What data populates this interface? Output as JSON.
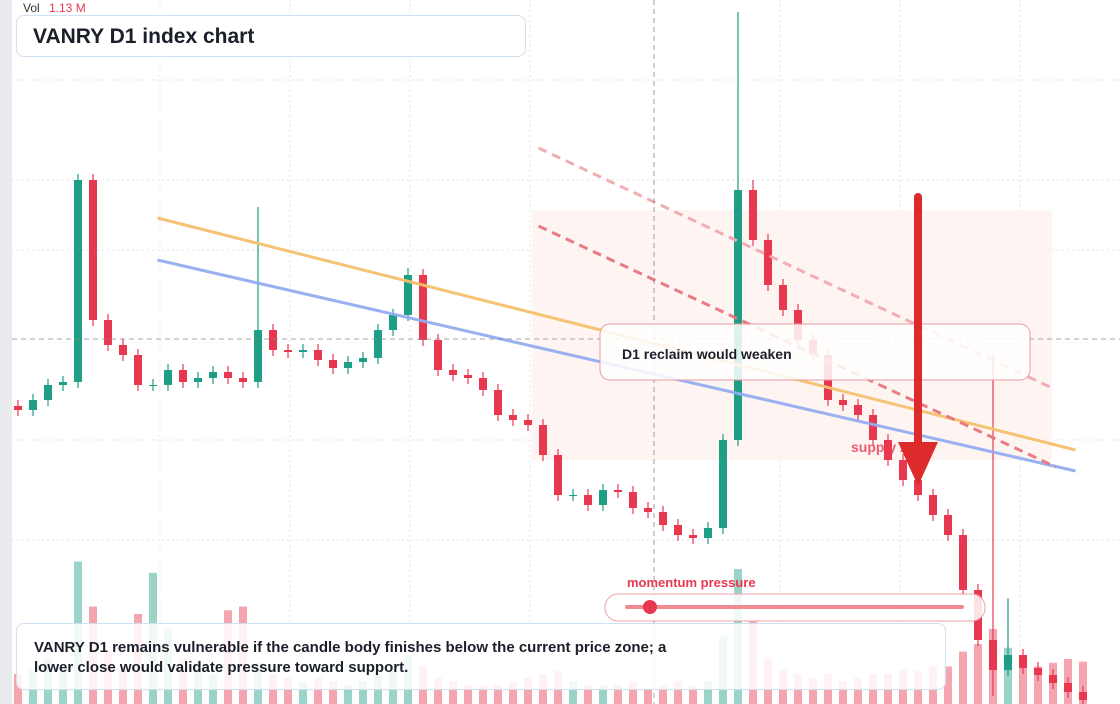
{
  "chart_data": {
    "type": "candlestick",
    "title": "VANRY D1 index chart",
    "ylim": [
      0,
      704
    ],
    "open": [
      298,
      294,
      304,
      319,
      322,
      524,
      384,
      359,
      349,
      319,
      319,
      334,
      322,
      326,
      332,
      326,
      322,
      374,
      354,
      352,
      354,
      344,
      336,
      342,
      346,
      374,
      389,
      429,
      364,
      334,
      329,
      326,
      314,
      289,
      284,
      279,
      249,
      209,
      209,
      199,
      214,
      212,
      196,
      192,
      179,
      169,
      166,
      176,
      264,
      514,
      464,
      419,
      394,
      364,
      349,
      304,
      299,
      289,
      264,
      244,
      224,
      209,
      189,
      169,
      114,
      64,
      34,
      49,
      36,
      29,
      21,
      12
    ],
    "high": [
      304,
      310,
      325,
      328,
      530,
      530,
      390,
      365,
      355,
      325,
      340,
      340,
      332,
      338,
      338,
      332,
      497,
      380,
      360,
      360,
      360,
      350,
      348,
      352,
      380,
      395,
      436,
      435,
      370,
      340,
      335,
      332,
      320,
      295,
      290,
      285,
      255,
      215,
      215,
      220,
      220,
      218,
      202,
      198,
      185,
      175,
      182,
      270,
      692,
      524,
      470,
      425,
      400,
      370,
      355,
      310,
      305,
      295,
      270,
      250,
      230,
      215,
      195,
      175,
      120,
      349,
      106,
      55,
      42,
      35,
      27,
      18
    ],
    "low": [
      288,
      288,
      298,
      313,
      316,
      378,
      353,
      343,
      313,
      313,
      313,
      316,
      316,
      320,
      320,
      316,
      316,
      348,
      346,
      346,
      338,
      330,
      330,
      336,
      340,
      368,
      383,
      358,
      328,
      323,
      320,
      308,
      283,
      278,
      273,
      243,
      203,
      203,
      193,
      193,
      206,
      190,
      186,
      173,
      163,
      160,
      160,
      170,
      258,
      458,
      413,
      388,
      358,
      343,
      298,
      293,
      283,
      258,
      238,
      218,
      203,
      183,
      163,
      108,
      58,
      8,
      28,
      30,
      23,
      15,
      6,
      0
    ],
    "close": [
      294,
      304,
      319,
      322,
      524,
      384,
      359,
      349,
      319,
      319,
      334,
      322,
      326,
      332,
      326,
      322,
      374,
      354,
      352,
      354,
      344,
      336,
      342,
      346,
      374,
      389,
      429,
      364,
      334,
      329,
      326,
      314,
      289,
      284,
      279,
      249,
      209,
      209,
      199,
      214,
      212,
      196,
      192,
      179,
      169,
      166,
      176,
      264,
      514,
      464,
      419,
      394,
      364,
      349,
      304,
      299,
      289,
      264,
      244,
      224,
      209,
      189,
      169,
      114,
      64,
      34,
      49,
      36,
      29,
      21,
      12,
      4
    ],
    "up_color": "#1e9e85",
    "down_color": "#e8384f",
    "volume": {
      "label": "Vol",
      "last_label": "1.13 M",
      "ylim": [
        0,
        4
      ],
      "values": [
        0.8,
        0.9,
        1.2,
        0.9,
        3.8,
        2.6,
        1.4,
        1.0,
        2.4,
        3.5,
        2.0,
        1.2,
        0.9,
        0.8,
        2.5,
        2.6,
        1.1,
        0.8,
        0.7,
        0.6,
        0.7,
        0.6,
        0.5,
        0.6,
        0.8,
        0.9,
        1.3,
        1.0,
        0.7,
        0.6,
        0.5,
        0.5,
        0.5,
        0.6,
        0.7,
        0.8,
        0.9,
        0.6,
        0.5,
        0.5,
        0.5,
        0.6,
        0.4,
        0.5,
        0.6,
        0.5,
        0.6,
        1.8,
        3.6,
        2.2,
        1.2,
        0.9,
        0.8,
        0.7,
        0.8,
        0.6,
        0.7,
        0.8,
        0.8,
        0.9,
        0.9,
        1.0,
        1.0,
        1.4,
        1.6,
        2.0,
        1.5,
        1.2,
        1.0,
        1.1,
        1.2,
        1.13
      ]
    },
    "trendlines": [
      {
        "color": "#f5c06e",
        "dashed": false,
        "x": [
          9.3,
          70.5
        ],
        "y": [
          486,
          254
        ]
      },
      {
        "color": "#93acf0",
        "dashed": false,
        "x": [
          9.3,
          70.5
        ],
        "y": [
          444,
          233
        ]
      },
      {
        "color": "#e8747c",
        "dashed": true,
        "x": [
          34.7,
          69.2
        ],
        "y": [
          478,
          237
        ]
      },
      {
        "color": "#f0aaae",
        "dashed": true,
        "x": [
          34.7,
          68.8
        ],
        "y": [
          556,
          317
        ]
      }
    ],
    "annotations": {
      "callout": "D1 reclaim would weaken",
      "zone": "supply zone",
      "momentum": "momentum pressure"
    },
    "note": "VANRY D1 remains vulnerable if the candle body finishes below the current price zone; a lower close would validate pressure toward support."
  }
}
